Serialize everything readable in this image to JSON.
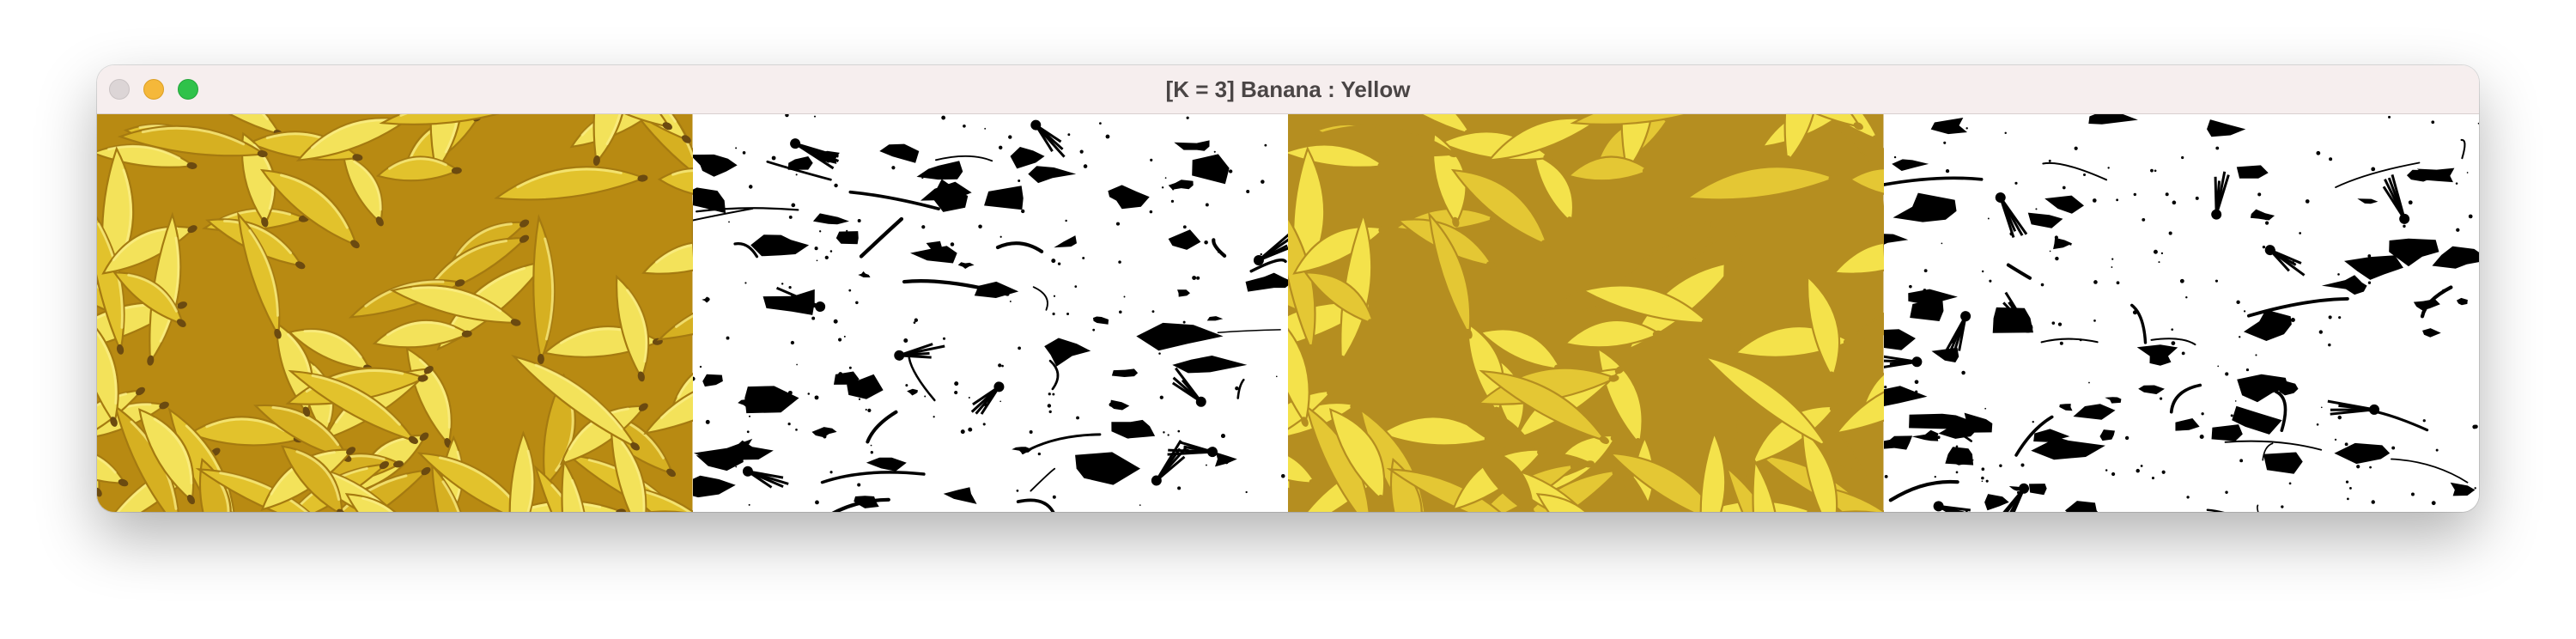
{
  "window": {
    "title": "[K = 3] Banana : Yellow",
    "controls": [
      "close",
      "minimize",
      "zoom"
    ]
  },
  "panels": [
    {
      "name": "original-image",
      "content": "photo of a pile of yellow bananas"
    },
    {
      "name": "mask-image",
      "content": "binary mask, black spots on white"
    },
    {
      "name": "segmented-image",
      "content": "posterized bananas in 3 yellow tones"
    },
    {
      "name": "mask-image-2",
      "content": "binary mask, black spots on white"
    }
  ],
  "colors": {
    "banana_light": "#f3e25a",
    "banana_mid": "#e2c22c",
    "banana_dark": "#b88a12",
    "banana_brown": "#6b4a10",
    "post_light": "#f4e24b",
    "post_mid": "#e4c734",
    "post_dark": "#b58e20",
    "mask_black": "#000000",
    "mask_white": "#ffffff",
    "titlebar": "#f6eeee"
  }
}
